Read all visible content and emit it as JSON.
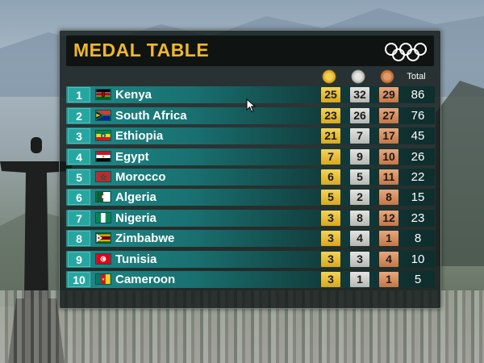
{
  "title": "MEDAL TABLE",
  "columns": {
    "gold_icon": "gold-medal-icon",
    "silver_icon": "silver-medal-icon",
    "bronze_icon": "bronze-medal-icon",
    "total_label": "Total"
  },
  "colors": {
    "title": "#f0b72e",
    "gold": "#e8c03a",
    "silver": "#cfcfcc",
    "bronze": "#d68e5e",
    "rank": "#26a6a1"
  },
  "rows": [
    {
      "rank": "1",
      "country": "Kenya",
      "gold": "25",
      "silver": "32",
      "bronze": "29",
      "total": "86"
    },
    {
      "rank": "2",
      "country": "South Africa",
      "gold": "23",
      "silver": "26",
      "bronze": "27",
      "total": "76"
    },
    {
      "rank": "3",
      "country": "Ethiopia",
      "gold": "21",
      "silver": "7",
      "bronze": "17",
      "total": "45"
    },
    {
      "rank": "4",
      "country": "Egypt",
      "gold": "7",
      "silver": "9",
      "bronze": "10",
      "total": "26"
    },
    {
      "rank": "5",
      "country": "Morocco",
      "gold": "6",
      "silver": "5",
      "bronze": "11",
      "total": "22"
    },
    {
      "rank": "6",
      "country": "Algeria",
      "gold": "5",
      "silver": "2",
      "bronze": "8",
      "total": "15"
    },
    {
      "rank": "7",
      "country": "Nigeria",
      "gold": "3",
      "silver": "8",
      "bronze": "12",
      "total": "23"
    },
    {
      "rank": "8",
      "country": "Zimbabwe",
      "gold": "3",
      "silver": "4",
      "bronze": "1",
      "total": "8"
    },
    {
      "rank": "9",
      "country": "Tunisia",
      "gold": "3",
      "silver": "3",
      "bronze": "4",
      "total": "10"
    },
    {
      "rank": "10",
      "country": "Cameroon",
      "gold": "3",
      "silver": "1",
      "bronze": "1",
      "total": "5"
    }
  ]
}
